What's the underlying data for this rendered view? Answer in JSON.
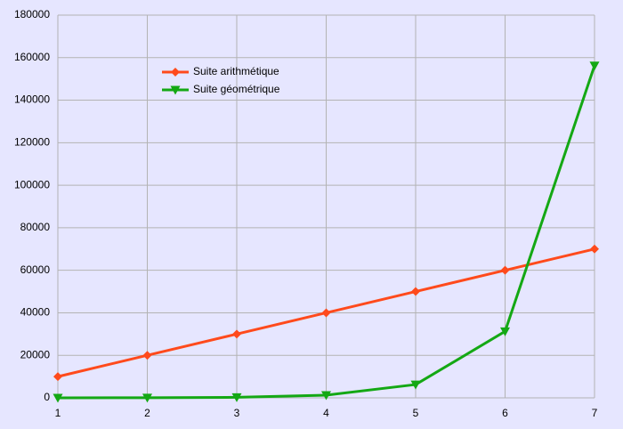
{
  "chart_data": {
    "type": "line",
    "x": [
      1,
      2,
      3,
      4,
      5,
      6,
      7
    ],
    "series": [
      {
        "name": "Suite arithmétique",
        "color": "#ff4a1c",
        "marker": "diamond",
        "values": [
          10000,
          20000,
          30000,
          40000,
          50000,
          60000,
          70000
        ]
      },
      {
        "name": "Suite géométrique",
        "color": "#14a814",
        "marker": "triangle-down",
        "values": [
          10,
          50,
          250,
          1250,
          6250,
          31250,
          156250
        ]
      }
    ],
    "xlim": [
      1,
      7
    ],
    "xticks": [
      1,
      2,
      3,
      4,
      5,
      6,
      7
    ],
    "ylim": [
      0,
      180000
    ],
    "yticks": [
      0,
      20000,
      40000,
      60000,
      80000,
      100000,
      120000,
      140000,
      160000,
      180000
    ],
    "grid": true,
    "legend": "upper left"
  }
}
